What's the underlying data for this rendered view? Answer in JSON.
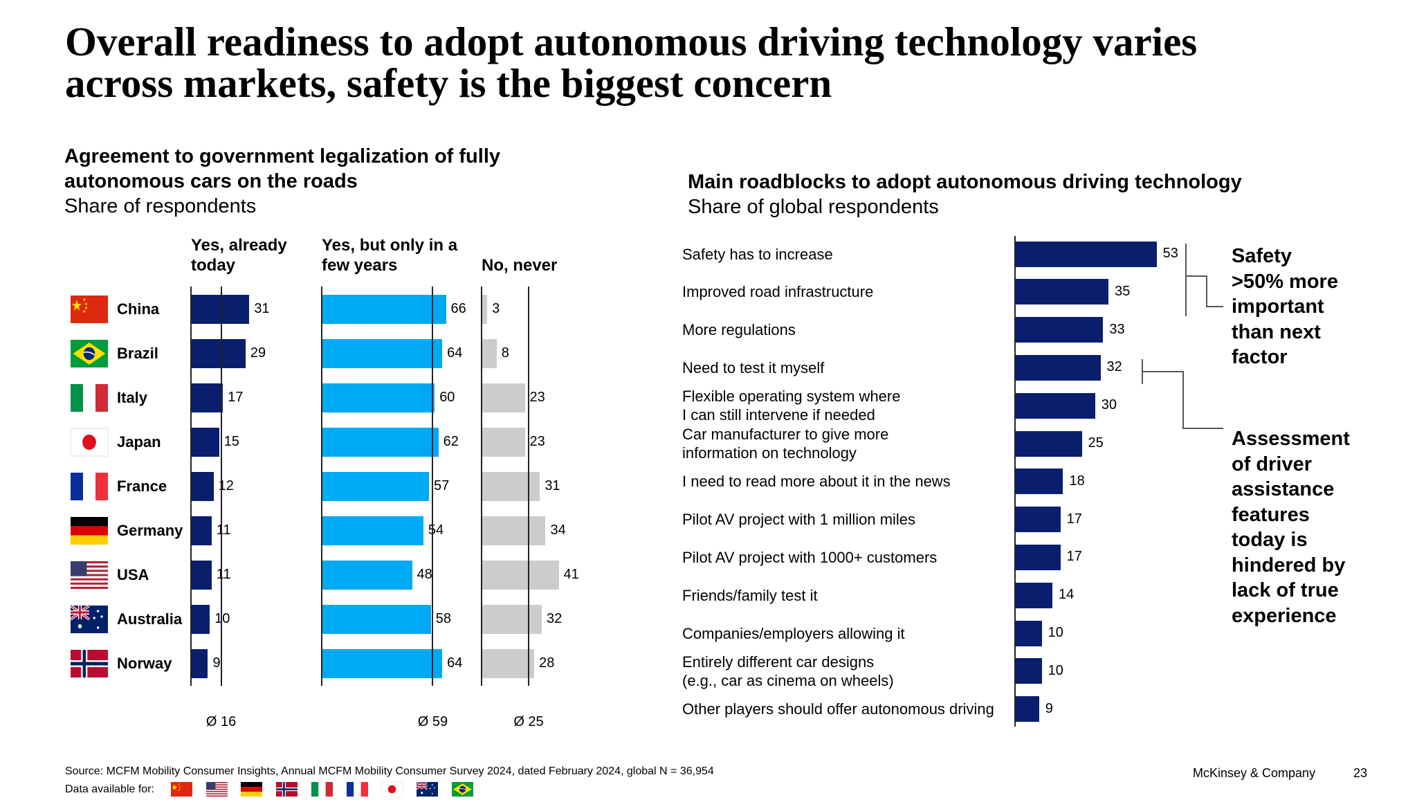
{
  "title": [
    "Overall readiness to adopt autonomous driving technology varies",
    "across markets, safety is the biggest concern"
  ],
  "colors": {
    "navy": "#0a1e6e",
    "cyan": "#00a9f4",
    "gray": "#cccccc",
    "axis": "#222222"
  },
  "chart_data": [
    {
      "type": "bar",
      "orientation": "horizontal",
      "title": [
        "Agreement to government legalization of fully",
        "autonomous cars on the roads"
      ],
      "subtitle": "Share of respondents",
      "categories": [
        "China",
        "Brazil",
        "Italy",
        "Japan",
        "France",
        "Germany",
        "USA",
        "Australia",
        "Norway"
      ],
      "flags": [
        "china",
        "brazil",
        "italy",
        "japan",
        "france",
        "germany",
        "usa",
        "australia",
        "norway"
      ],
      "series": [
        {
          "name": "Yes, already today",
          "name_lines": [
            "Yes, already",
            "today"
          ],
          "values": [
            31,
            29,
            17,
            15,
            12,
            11,
            11,
            10,
            9
          ],
          "average": 16,
          "average_label": "Ø 16",
          "color": "#0a1e6e"
        },
        {
          "name": "Yes, but only in a few years",
          "name_lines": [
            "Yes, but only in a",
            "few years"
          ],
          "values": [
            66,
            64,
            60,
            62,
            57,
            54,
            48,
            58,
            64
          ],
          "average": 59,
          "average_label": "Ø 59",
          "color": "#00a9f4"
        },
        {
          "name": "No, never",
          "name_lines": [
            "",
            "No, never"
          ],
          "values": [
            3,
            8,
            23,
            23,
            31,
            34,
            41,
            32,
            28
          ],
          "average": 25,
          "average_label": "Ø 25",
          "color": "#cccccc"
        }
      ]
    },
    {
      "type": "bar",
      "orientation": "horizontal",
      "title": "Main roadblocks to adopt autonomous driving technology",
      "subtitle": "Share of global respondents",
      "categories": [
        [
          "Safety has to increase"
        ],
        [
          "Improved road infrastructure"
        ],
        [
          "More regulations"
        ],
        [
          "Need to test it myself"
        ],
        [
          "Flexible operating system where",
          "I can still intervene if needed"
        ],
        [
          "Car manufacturer to give more",
          "information on technology"
        ],
        [
          "I need to read more about it in the news"
        ],
        [
          "Pilot AV project with 1 million miles"
        ],
        [
          "Pilot AV project with 1000+ customers"
        ],
        [
          "Friends/family test it"
        ],
        [
          "Companies/employers allowing it"
        ],
        [
          "Entirely different car designs",
          "(e.g., car as cinema on wheels)"
        ],
        [
          "Other players should offer autonomous driving"
        ]
      ],
      "values": [
        53,
        35,
        33,
        32,
        30,
        25,
        18,
        17,
        17,
        14,
        10,
        10,
        9
      ],
      "color": "#0a1e6e",
      "annotations": [
        [
          "Safety",
          ">50% more",
          "important",
          "than next",
          "factor"
        ],
        [
          "Assessment",
          "of driver",
          "assistance",
          "features",
          "today is",
          "hindered by",
          "lack of true",
          "experience"
        ]
      ]
    }
  ],
  "footer": {
    "source": "Source: MCFM Mobility Consumer Insights, Annual MCFM Mobility Consumer Survey 2024, dated February 2024, global N = 36,954",
    "data_available_label": "Data available for:",
    "data_available_flags": [
      "china",
      "usa",
      "germany",
      "norway",
      "italy",
      "france",
      "japan",
      "australia",
      "brazil"
    ],
    "brand": "McKinsey & Company",
    "page_number": "23"
  }
}
